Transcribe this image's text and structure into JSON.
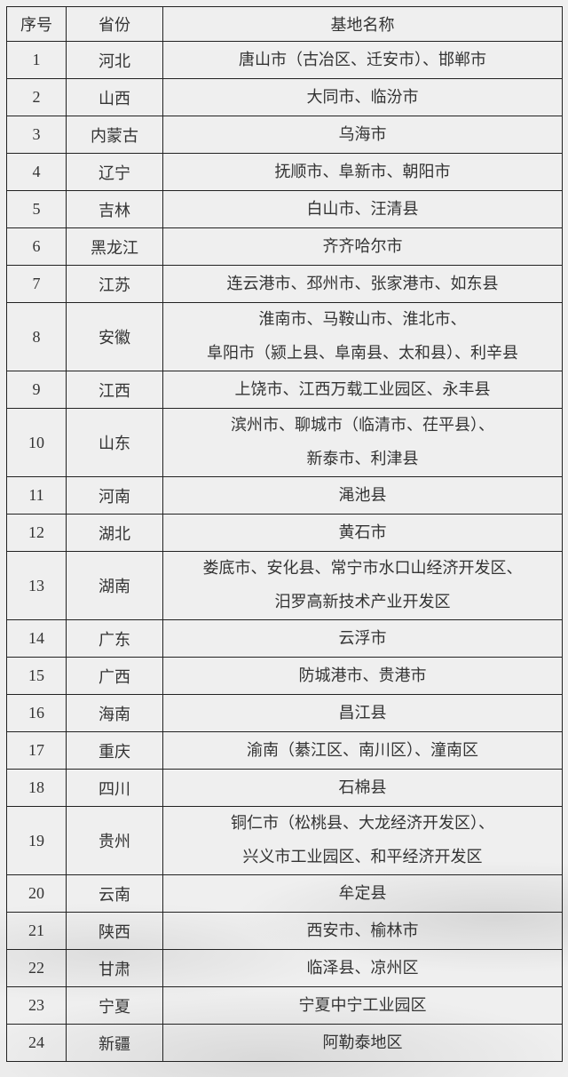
{
  "header": {
    "index": "序号",
    "province": "省份",
    "bases": "基地名称"
  },
  "rows": [
    {
      "index": "1",
      "province": "河北",
      "lines": [
        "唐山市（古冶区、迁安市）、邯郸市"
      ]
    },
    {
      "index": "2",
      "province": "山西",
      "lines": [
        "大同市、临汾市"
      ]
    },
    {
      "index": "3",
      "province": "内蒙古",
      "lines": [
        "乌海市"
      ]
    },
    {
      "index": "4",
      "province": "辽宁",
      "lines": [
        "抚顺市、阜新市、朝阳市"
      ]
    },
    {
      "index": "5",
      "province": "吉林",
      "lines": [
        "白山市、汪清县"
      ]
    },
    {
      "index": "6",
      "province": "黑龙江",
      "lines": [
        "齐齐哈尔市"
      ]
    },
    {
      "index": "7",
      "province": "江苏",
      "lines": [
        "连云港市、邳州市、张家港市、如东县"
      ]
    },
    {
      "index": "8",
      "province": "安徽",
      "lines": [
        "淮南市、马鞍山市、淮北市、",
        "阜阳市（颍上县、阜南县、太和县）、利辛县"
      ]
    },
    {
      "index": "9",
      "province": "江西",
      "lines": [
        "上饶市、江西万载工业园区、永丰县"
      ]
    },
    {
      "index": "10",
      "province": "山东",
      "lines": [
        "滨州市、聊城市（临清市、茌平县）、",
        "新泰市、利津县"
      ]
    },
    {
      "index": "11",
      "province": "河南",
      "lines": [
        "渑池县"
      ]
    },
    {
      "index": "12",
      "province": "湖北",
      "lines": [
        "黄石市"
      ]
    },
    {
      "index": "13",
      "province": "湖南",
      "lines": [
        "娄底市、安化县、常宁市水口山经济开发区、",
        "汨罗高新技术产业开发区"
      ]
    },
    {
      "index": "14",
      "province": "广东",
      "lines": [
        "云浮市"
      ]
    },
    {
      "index": "15",
      "province": "广西",
      "lines": [
        "防城港市、贵港市"
      ]
    },
    {
      "index": "16",
      "province": "海南",
      "lines": [
        "昌江县"
      ]
    },
    {
      "index": "17",
      "province": "重庆",
      "lines": [
        "渝南（綦江区、南川区）、潼南区"
      ]
    },
    {
      "index": "18",
      "province": "四川",
      "lines": [
        "石棉县"
      ]
    },
    {
      "index": "19",
      "province": "贵州",
      "lines": [
        "铜仁市（松桃县、大龙经济开发区）、",
        "兴义市工业园区、和平经济开发区"
      ]
    },
    {
      "index": "20",
      "province": "云南",
      "lines": [
        "牟定县"
      ]
    },
    {
      "index": "21",
      "province": "陕西",
      "lines": [
        "西安市、榆林市"
      ]
    },
    {
      "index": "22",
      "province": "甘肃",
      "lines": [
        "临泽县、凉州区"
      ]
    },
    {
      "index": "23",
      "province": "宁夏",
      "lines": [
        "宁夏中宁工业园区"
      ]
    },
    {
      "index": "24",
      "province": "新疆",
      "lines": [
        "阿勒泰地区"
      ]
    }
  ]
}
